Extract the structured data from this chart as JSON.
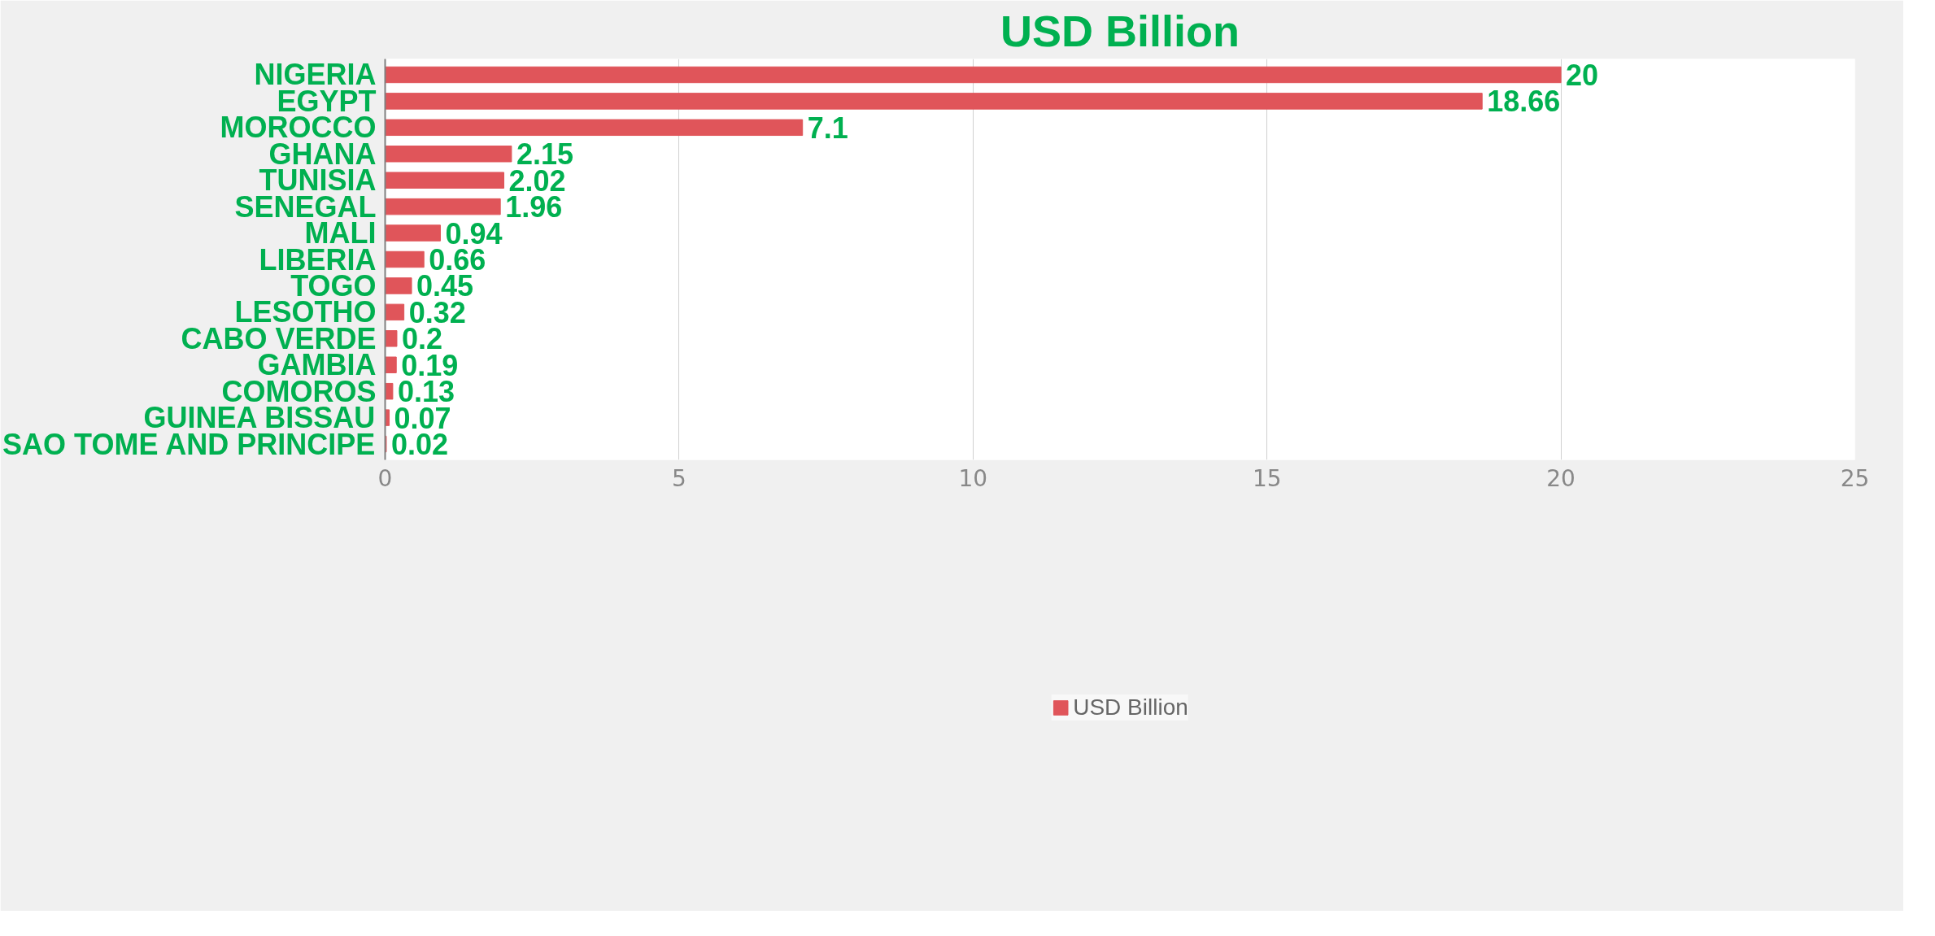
{
  "chart_data": {
    "type": "bar",
    "orientation": "horizontal",
    "title": "USD Billion",
    "categories": [
      "NIGERIA",
      "EGYPT",
      "MOROCCO",
      "GHANA",
      "TUNISIA",
      "SENEGAL",
      "MALI",
      "LIBERIA",
      "TOGO",
      "LESOTHO",
      "CABO VERDE",
      "GAMBIA",
      "COMOROS",
      "GUINEA BISSAU",
      "SAO TOME AND PRINCIPE"
    ],
    "series": [
      {
        "name": "USD Billion",
        "color": "#e0555a",
        "values": [
          20,
          18.66,
          7.1,
          2.15,
          2.02,
          1.96,
          0.94,
          0.66,
          0.45,
          0.32,
          0.2,
          0.19,
          0.13,
          0.07,
          0.02
        ]
      }
    ],
    "xlim": [
      0,
      25
    ],
    "xticks": [
      0,
      5,
      10,
      15,
      20,
      25
    ],
    "grid": "x",
    "legend": "bottom",
    "data_labels": true
  }
}
